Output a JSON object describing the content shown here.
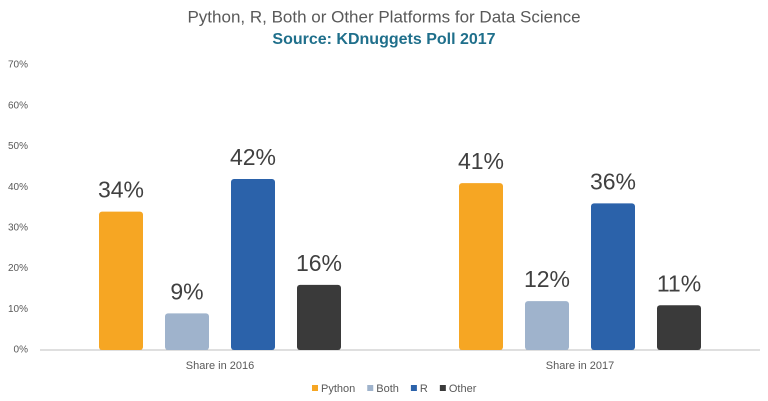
{
  "chart_data": {
    "type": "bar",
    "title": "Python, R, Both or Other Platforms for Data Science",
    "subtitle": "Source: KDnuggets Poll 2017",
    "categories": [
      "Share in 2016",
      "Share in 2017"
    ],
    "series": [
      {
        "name": "Python",
        "color": "#f6a623",
        "values": [
          34,
          41
        ],
        "value_labels": [
          "34%",
          "41%"
        ]
      },
      {
        "name": "Both",
        "color": "#9fb3cc",
        "values": [
          9,
          12
        ],
        "value_labels": [
          "9%",
          "12%"
        ]
      },
      {
        "name": "R",
        "color": "#2b62aa",
        "values": [
          42,
          36
        ],
        "value_labels": [
          "42%",
          "36%"
        ]
      },
      {
        "name": "Other",
        "color": "#3a3a3a",
        "values": [
          16,
          11
        ],
        "value_labels": [
          "16%",
          "11%"
        ]
      }
    ],
    "ylim": [
      0,
      70
    ],
    "yticks": [
      {
        "value": 0,
        "label": "0%"
      },
      {
        "value": 10,
        "label": "10%"
      },
      {
        "value": 20,
        "label": "20%"
      },
      {
        "value": 30,
        "label": "30%"
      },
      {
        "value": 40,
        "label": "40%"
      },
      {
        "value": 50,
        "label": "50%"
      },
      {
        "value": 60,
        "label": "60%"
      },
      {
        "value": 70,
        "label": "70%"
      }
    ],
    "grid": false,
    "legend": "bottom"
  }
}
